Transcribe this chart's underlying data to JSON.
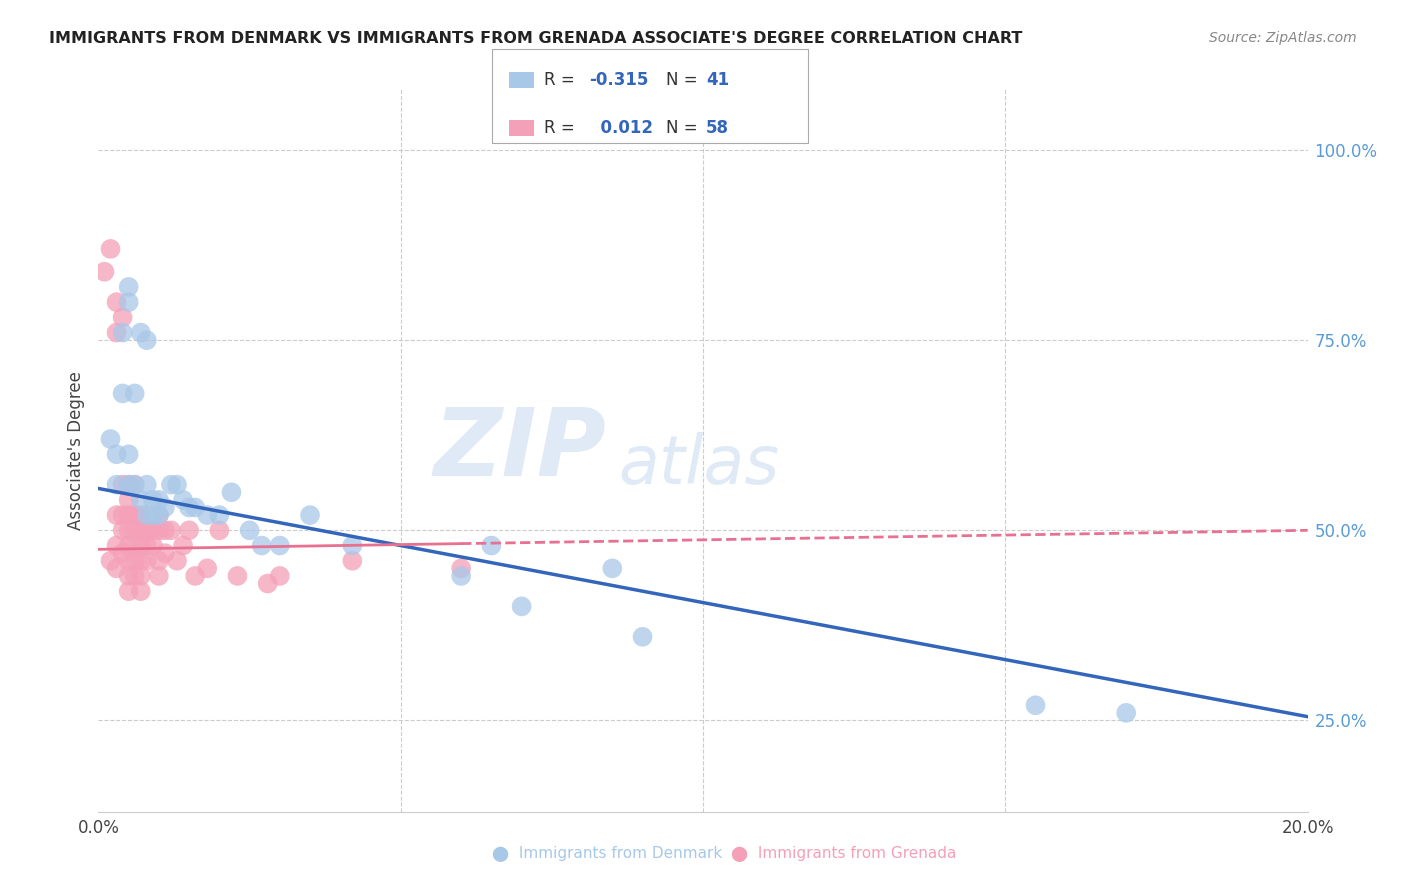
{
  "title": "IMMIGRANTS FROM DENMARK VS IMMIGRANTS FROM GRENADA ASSOCIATE'S DEGREE CORRELATION CHART",
  "source": "Source: ZipAtlas.com",
  "ylabel": "Associate's Degree",
  "yticks_right": [
    "25.0%",
    "50.0%",
    "75.0%",
    "100.0%"
  ],
  "ytick_values": [
    0.25,
    0.5,
    0.75,
    1.0
  ],
  "xlim": [
    0.0,
    0.2
  ],
  "ylim": [
    0.13,
    1.08
  ],
  "legend_denmark_R": "-0.315",
  "legend_denmark_N": "41",
  "legend_grenada_R": "0.012",
  "legend_grenada_N": "58",
  "denmark_color": "#a8c8e8",
  "grenada_color": "#f4a0b8",
  "denmark_line_color": "#3366bb",
  "grenada_line_color": "#e87090",
  "watermark_zip": "ZIP",
  "watermark_atlas": "atlas",
  "grid_color": "#cccccc",
  "background_color": "#ffffff",
  "denmark_x": [
    0.002,
    0.003,
    0.003,
    0.004,
    0.004,
    0.005,
    0.005,
    0.005,
    0.005,
    0.006,
    0.006,
    0.007,
    0.007,
    0.008,
    0.008,
    0.008,
    0.009,
    0.009,
    0.01,
    0.01,
    0.011,
    0.012,
    0.013,
    0.014,
    0.015,
    0.016,
    0.018,
    0.02,
    0.022,
    0.025,
    0.027,
    0.03,
    0.035,
    0.042,
    0.06,
    0.065,
    0.07,
    0.085,
    0.09,
    0.155,
    0.17
  ],
  "denmark_y": [
    0.62,
    0.6,
    0.56,
    0.68,
    0.76,
    0.82,
    0.8,
    0.6,
    0.56,
    0.68,
    0.56,
    0.54,
    0.76,
    0.56,
    0.52,
    0.75,
    0.54,
    0.52,
    0.54,
    0.52,
    0.53,
    0.56,
    0.56,
    0.54,
    0.53,
    0.53,
    0.52,
    0.52,
    0.55,
    0.5,
    0.48,
    0.48,
    0.52,
    0.48,
    0.44,
    0.48,
    0.4,
    0.45,
    0.36,
    0.27,
    0.26
  ],
  "grenada_x": [
    0.001,
    0.002,
    0.002,
    0.003,
    0.003,
    0.003,
    0.003,
    0.003,
    0.004,
    0.004,
    0.004,
    0.004,
    0.004,
    0.005,
    0.005,
    0.005,
    0.005,
    0.005,
    0.005,
    0.005,
    0.005,
    0.006,
    0.006,
    0.006,
    0.006,
    0.006,
    0.006,
    0.007,
    0.007,
    0.007,
    0.007,
    0.007,
    0.007,
    0.008,
    0.008,
    0.008,
    0.008,
    0.009,
    0.009,
    0.009,
    0.01,
    0.01,
    0.01,
    0.01,
    0.011,
    0.011,
    0.012,
    0.013,
    0.014,
    0.015,
    0.016,
    0.018,
    0.02,
    0.023,
    0.028,
    0.03,
    0.042,
    0.06
  ],
  "grenada_y": [
    0.84,
    0.87,
    0.46,
    0.8,
    0.76,
    0.52,
    0.48,
    0.45,
    0.78,
    0.56,
    0.52,
    0.5,
    0.47,
    0.56,
    0.54,
    0.52,
    0.5,
    0.48,
    0.46,
    0.44,
    0.42,
    0.56,
    0.52,
    0.5,
    0.48,
    0.46,
    0.44,
    0.52,
    0.5,
    0.48,
    0.46,
    0.44,
    0.42,
    0.52,
    0.5,
    0.48,
    0.46,
    0.52,
    0.5,
    0.48,
    0.52,
    0.5,
    0.46,
    0.44,
    0.5,
    0.47,
    0.5,
    0.46,
    0.48,
    0.5,
    0.44,
    0.45,
    0.5,
    0.44,
    0.43,
    0.44,
    0.46,
    0.45
  ],
  "dk_line_x0": 0.0,
  "dk_line_y0": 0.555,
  "dk_line_x1": 0.2,
  "dk_line_y1": 0.255,
  "gr_line_x0": 0.0,
  "gr_line_y0": 0.475,
  "gr_line_x1": 0.2,
  "gr_line_y1": 0.5
}
